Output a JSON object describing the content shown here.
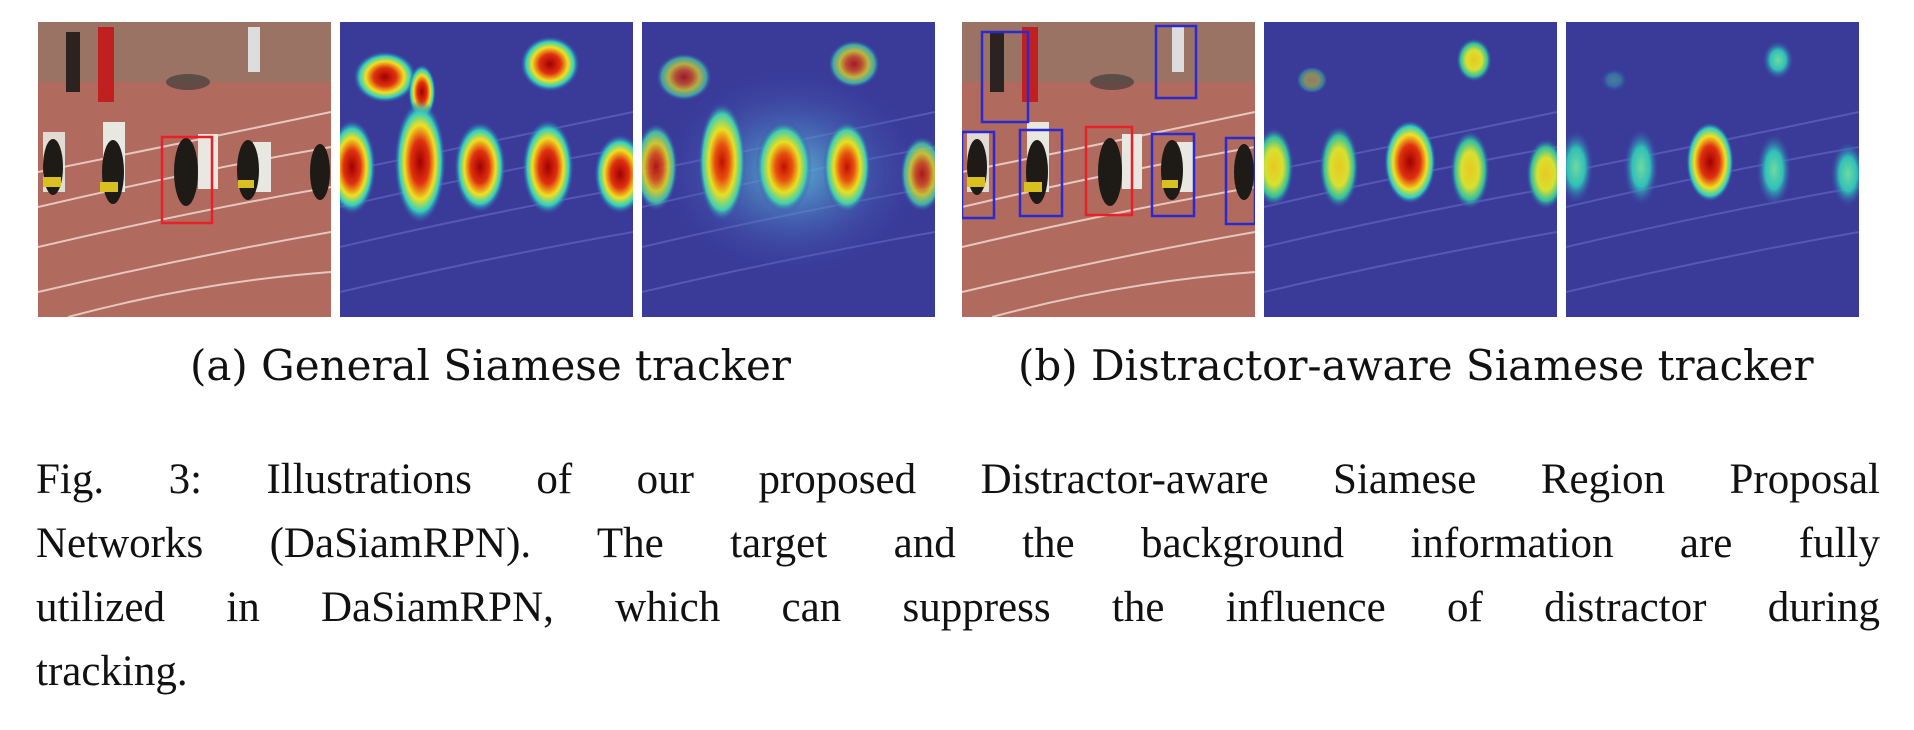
{
  "figure": {
    "panels": [
      {
        "subcaption": "(a) General Siamese tracker",
        "images": [
          {
            "kind": "frame",
            "boxes": [
              {
                "role": "target",
                "color": "#e8202a"
              }
            ]
          },
          {
            "kind": "heatmap",
            "variant": "response"
          },
          {
            "kind": "heatmap",
            "variant": "diffuse"
          }
        ]
      },
      {
        "subcaption": "(b) Distractor-aware Siamese tracker",
        "images": [
          {
            "kind": "frame",
            "boxes": [
              {
                "role": "target",
                "color": "#e8202a"
              },
              {
                "role": "distractor",
                "color": "#2a2ad0"
              }
            ]
          },
          {
            "kind": "heatmap",
            "variant": "suppressed"
          },
          {
            "kind": "heatmap",
            "variant": "suppressed-cool"
          }
        ]
      }
    ],
    "caption_lines": [
      "Fig. 3: Illustrations of our proposed Distractor-aware Siamese Region Proposal",
      "Networks (DaSiamRPN). The target and the background information are fully",
      "utilized in DaSiamRPN, which can suppress the influence of distractor during",
      "tracking."
    ]
  }
}
